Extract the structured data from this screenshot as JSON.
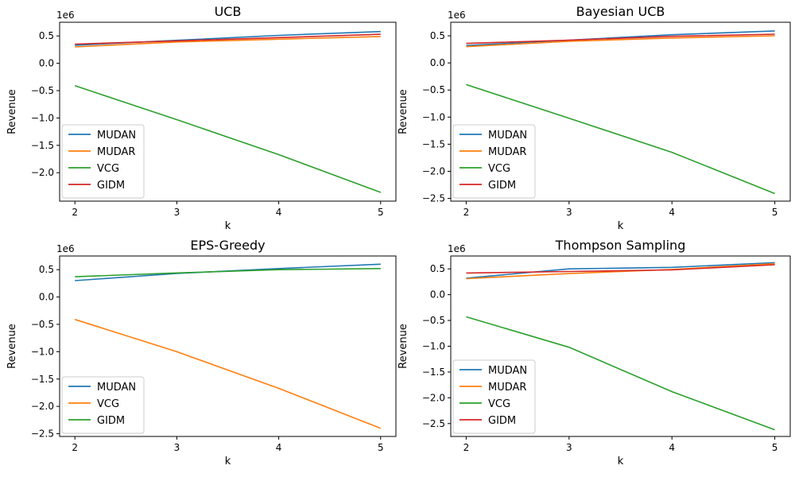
{
  "chart_data": [
    {
      "type": "line",
      "title": "UCB",
      "xlabel": "k",
      "ylabel": "Revenue",
      "offset_text": "1e6",
      "x": [
        2,
        3,
        4,
        5
      ],
      "xlim": [
        1.85,
        5.15
      ],
      "ylim": [
        -2.52,
        0.75
      ],
      "yticks": [
        -2.0,
        -1.5,
        -1.0,
        -0.5,
        0.0,
        0.5
      ],
      "legend": "lower-left",
      "grid": false,
      "series": [
        {
          "name": "MUDAN",
          "color": "#1f77b4",
          "values": [
            0.33,
            0.42,
            0.51,
            0.58
          ]
        },
        {
          "name": "MUDAR",
          "color": "#ff7f0e",
          "values": [
            0.3,
            0.39,
            0.44,
            0.49
          ]
        },
        {
          "name": "VCG",
          "color": "#2ca02c",
          "values": [
            -0.41,
            -1.03,
            -1.67,
            -2.36
          ]
        },
        {
          "name": "GIDM",
          "color": "#d62728",
          "values": [
            0.35,
            0.41,
            0.47,
            0.53
          ]
        }
      ]
    },
    {
      "type": "line",
      "title": "Bayesian UCB",
      "xlabel": "k",
      "ylabel": "Revenue",
      "offset_text": "1e6",
      "x": [
        2,
        3,
        4,
        5
      ],
      "xlim": [
        1.85,
        5.15
      ],
      "ylim": [
        -2.55,
        0.75
      ],
      "yticks": [
        -2.5,
        -2.0,
        -1.5,
        -1.0,
        -0.5,
        0.0,
        0.5
      ],
      "legend": "lower-left",
      "grid": false,
      "series": [
        {
          "name": "MUDAN",
          "color": "#1f77b4",
          "values": [
            0.32,
            0.42,
            0.52,
            0.59
          ]
        },
        {
          "name": "MUDAR",
          "color": "#ff7f0e",
          "values": [
            0.3,
            0.4,
            0.46,
            0.5
          ]
        },
        {
          "name": "VCG",
          "color": "#2ca02c",
          "values": [
            -0.4,
            -1.02,
            -1.65,
            -2.41
          ]
        },
        {
          "name": "GIDM",
          "color": "#d62728",
          "values": [
            0.36,
            0.42,
            0.49,
            0.53
          ]
        }
      ]
    },
    {
      "type": "line",
      "title": "EPS-Greedy",
      "xlabel": "k",
      "ylabel": "Revenue",
      "offset_text": "1e6",
      "x": [
        2,
        3,
        4,
        5
      ],
      "xlim": [
        1.85,
        5.15
      ],
      "ylim": [
        -2.55,
        0.75
      ],
      "yticks": [
        -2.5,
        -2.0,
        -1.5,
        -1.0,
        -0.5,
        0.0,
        0.5
      ],
      "legend": "lower-left",
      "grid": false,
      "series": [
        {
          "name": "MUDAN",
          "color": "#1f77b4",
          "values": [
            0.3,
            0.43,
            0.52,
            0.6
          ]
        },
        {
          "name": "VCG",
          "color": "#ff7f0e",
          "values": [
            -0.41,
            -1.0,
            -1.67,
            -2.4
          ]
        },
        {
          "name": "GIDM",
          "color": "#2ca02c",
          "values": [
            0.37,
            0.44,
            0.5,
            0.52
          ]
        }
      ]
    },
    {
      "type": "line",
      "title": "Thompson Sampling",
      "xlabel": "k",
      "ylabel": "Revenue",
      "offset_text": "1e6",
      "x": [
        2,
        3,
        4,
        5
      ],
      "xlim": [
        1.85,
        5.15
      ],
      "ylim": [
        -2.75,
        0.75
      ],
      "yticks": [
        -2.5,
        -2.0,
        -1.5,
        -1.0,
        -0.5,
        0.0,
        0.5
      ],
      "legend": "lower-left",
      "grid": false,
      "series": [
        {
          "name": "MUDAN",
          "color": "#1f77b4",
          "values": [
            0.32,
            0.5,
            0.53,
            0.62
          ]
        },
        {
          "name": "MUDAR",
          "color": "#ff7f0e",
          "values": [
            0.31,
            0.41,
            0.49,
            0.6
          ]
        },
        {
          "name": "VCG",
          "color": "#2ca02c",
          "values": [
            -0.43,
            -1.02,
            -1.88,
            -2.62
          ]
        },
        {
          "name": "GIDM",
          "color": "#d62728",
          "values": [
            0.42,
            0.45,
            0.48,
            0.58
          ]
        }
      ]
    }
  ]
}
